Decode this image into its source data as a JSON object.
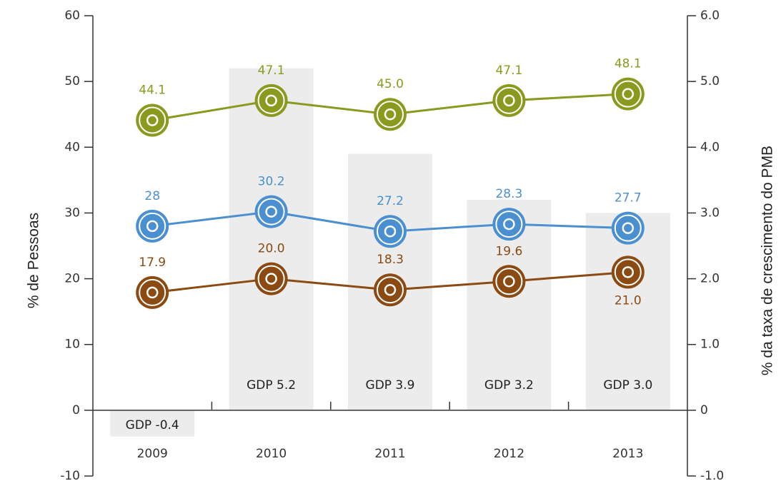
{
  "chart_data": {
    "type": "line",
    "categories": [
      "2009",
      "2010",
      "2011",
      "2012",
      "2013"
    ],
    "ylabel": "% de Pessoas",
    "y2label": "% da taxa de crescimento do PMB",
    "ylim": [
      -10,
      60
    ],
    "yticks": [
      -10,
      0,
      10,
      20,
      30,
      40,
      50,
      60
    ],
    "y2lim": [
      -1,
      6
    ],
    "y2ticks": [
      {
        "value": -1,
        "label": "-1.0"
      },
      0,
      {
        "value": 1,
        "label": "1.0"
      },
      {
        "value": 2,
        "label": "2.0"
      },
      {
        "value": 3,
        "label": "3.0"
      },
      {
        "value": 4,
        "label": "4.0"
      },
      {
        "value": 5,
        "label": "5.0"
      },
      {
        "value": 6,
        "label": "6.0"
      }
    ],
    "bars": {
      "axis": "y2",
      "color": "#ececec",
      "values": [
        -0.4,
        5.2,
        3.9,
        3.2,
        3.0
      ],
      "value_labels": [
        "GDP -0.4",
        "GDP 5.2",
        "GDP 3.9",
        "GDP 3.2",
        "GDP 3.0"
      ]
    },
    "series": [
      {
        "color": "#8a9a1e",
        "values": [
          44.1,
          47.1,
          45.0,
          47.1,
          48.1
        ],
        "value_labels": [
          "44.1",
          "47.1",
          "45.0",
          "47.1",
          "48.1"
        ]
      },
      {
        "color": "#4a90d0",
        "values": [
          28,
          30.2,
          27.2,
          28.3,
          27.7
        ]
      },
      {
        "color": "#8b4a12",
        "values": [
          17.9,
          20.0,
          18.3,
          19.6,
          21.0
        ],
        "value_labels": [
          "17.9",
          "20.0",
          "18.3",
          "19.6",
          "21.0"
        ]
      }
    ]
  }
}
